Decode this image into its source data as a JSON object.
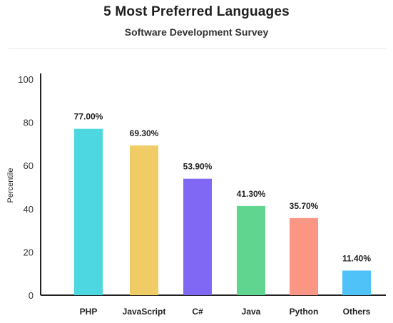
{
  "chart_data": {
    "type": "bar",
    "title": "5 Most Preferred Languages",
    "subtitle": "Software Development Survey",
    "xlabel": "",
    "ylabel": "Percentile",
    "ylim": [
      0,
      100
    ],
    "yticks": [
      0,
      20,
      40,
      60,
      80,
      100
    ],
    "grid": false,
    "categories": [
      "PHP",
      "JavaScript",
      "C#",
      "Java",
      "Python",
      "Others"
    ],
    "values": [
      77.0,
      69.3,
      53.9,
      41.3,
      35.7,
      11.4
    ],
    "value_labels": [
      "77.00%",
      "69.30%",
      "53.90%",
      "41.30%",
      "35.70%",
      "11.40%"
    ],
    "colors": [
      "#4dd7e0",
      "#f0cc66",
      "#8068f5",
      "#5fd590",
      "#fb9685",
      "#4fc2f7"
    ]
  }
}
